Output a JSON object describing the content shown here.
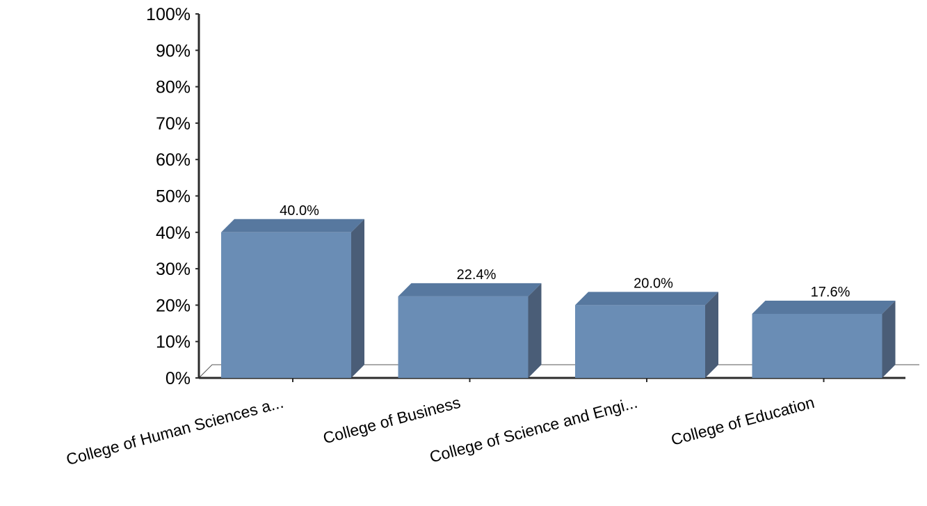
{
  "chart_data": {
    "type": "bar",
    "categories": [
      "College of Human Sciences a...",
      "College of Business",
      "College of Science and Engi...",
      "College of Education"
    ],
    "values": [
      40.0,
      22.4,
      20.0,
      17.6
    ],
    "data_labels": [
      "40.0%",
      "22.4%",
      "20.0%",
      "17.6%"
    ],
    "ytick_labels": [
      "0%",
      "10%",
      "20%",
      "30%",
      "40%",
      "50%",
      "60%",
      "70%",
      "80%",
      "90%",
      "100%"
    ],
    "ylim": [
      0,
      100
    ],
    "title": "",
    "xlabel": "",
    "ylabel": "",
    "grid": false,
    "legend": "none",
    "three_d": true,
    "colors": {
      "bar_front": "#6a8db5",
      "bar_top": "#57789f",
      "bar_side": "#4a5d77",
      "axis": "#2b2b2b"
    }
  }
}
